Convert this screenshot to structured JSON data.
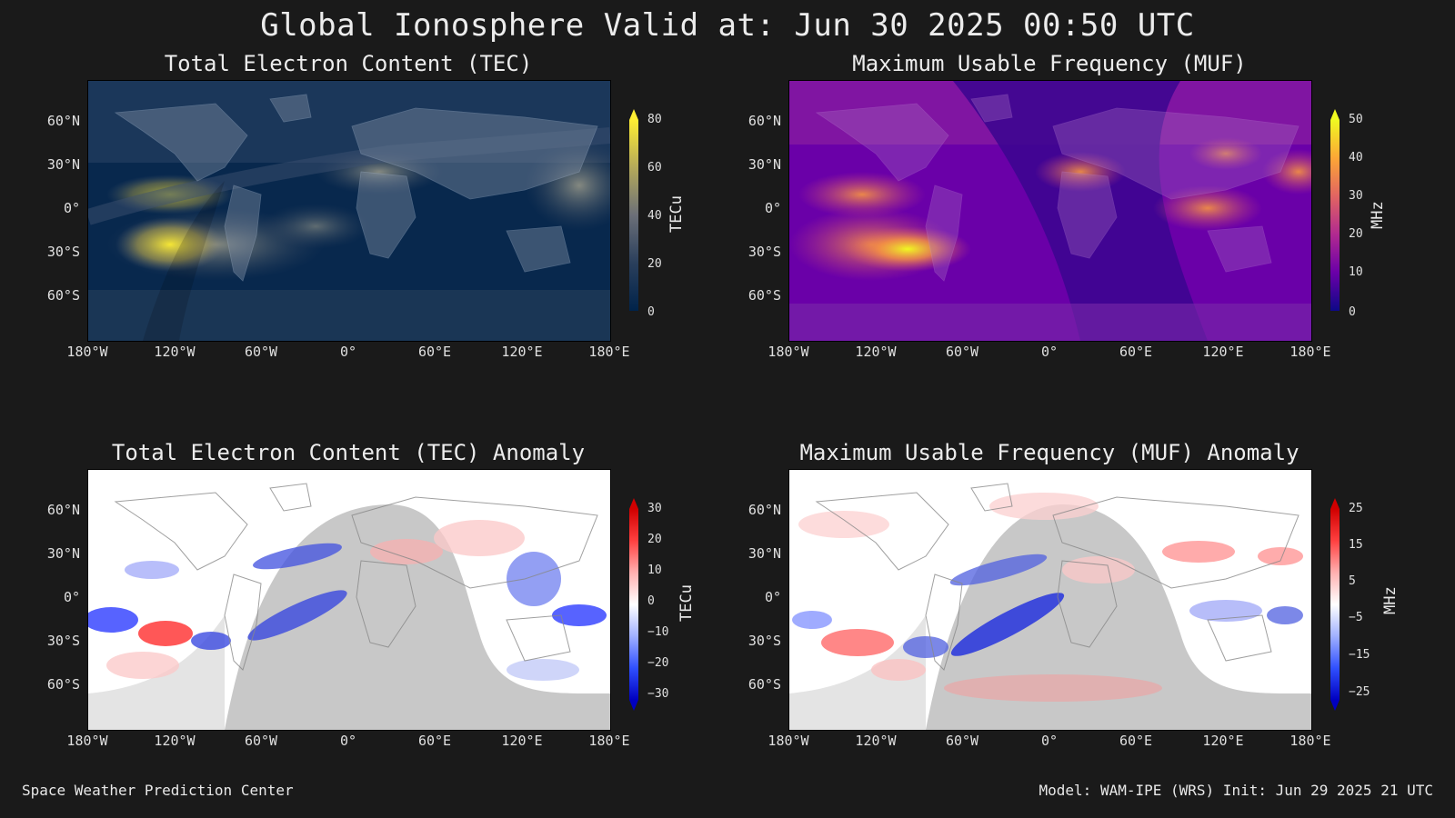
{
  "title": "Global Ionosphere Valid at: Jun 30 2025 00:50 UTC",
  "footer": {
    "left": "Space Weather Prediction Center",
    "right": "Model: WAM-IPE (WRS) Init: Jun 29 2025 21 UTC"
  },
  "axes": {
    "lat_labels": [
      "60°N",
      "30°N",
      "0°",
      "30°S",
      "60°S"
    ],
    "lon_labels": [
      "180°W",
      "120°W",
      "60°W",
      "0°",
      "60°E",
      "120°E",
      "180°E"
    ]
  },
  "panels": [
    {
      "title": "Total Electron Content (TEC)",
      "unit": "TECu",
      "ticks": [
        "80",
        "60",
        "40",
        "20",
        "0"
      ],
      "colors": {
        "low": "#00234a",
        "mid": "#6b6f78",
        "high": "#ffee33"
      }
    },
    {
      "title": "Maximum Usable Frequency (MUF)",
      "unit": "MHz",
      "ticks": [
        "50",
        "40",
        "30",
        "20",
        "10",
        "0"
      ],
      "colors": {
        "low": "#0d0887",
        "mid": "#cc4778",
        "high": "#f0f921"
      }
    },
    {
      "title": "Total Electron Content (TEC) Anomaly",
      "unit": "TECu",
      "ticks": [
        "30",
        "20",
        "10",
        "0",
        "−10",
        "−20",
        "−30"
      ],
      "colors": {
        "low": "#0000ff",
        "mid": "#ffffff",
        "high": "#ff0000"
      }
    },
    {
      "title": "Maximum Usable Frequency (MUF) Anomaly",
      "unit": "MHz",
      "ticks": [
        "25",
        "15",
        "5",
        "−5",
        "−15",
        "−25"
      ],
      "colors": {
        "low": "#0000ff",
        "mid": "#ffffff",
        "high": "#ff0000"
      }
    }
  ]
}
